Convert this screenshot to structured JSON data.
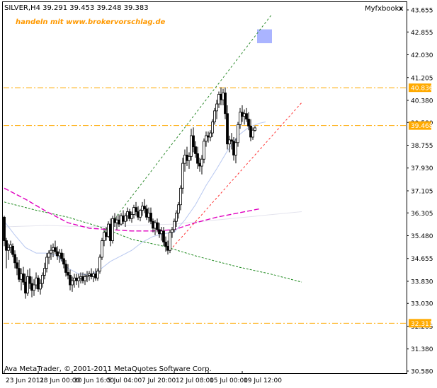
{
  "window": {
    "symbol_header": "SILVER,H4  39.291 39.453 39.248 39.383",
    "indicator_name": "Myfxbook",
    "close_glyph": "x",
    "close_icon": "close-icon"
  },
  "brand_text": "handeln mit www.brokervorschlag.de",
  "copyright": "Ava MetaTrader, © 2001-2011 MetaQuotes Software Corp.",
  "colors": {
    "bull_candle": "#ffffff",
    "bear_candle": "#000000",
    "level_lines": "#ffaa00",
    "level_label_bg": "#ffaa00",
    "upper_channel": "#2e8b2e",
    "lower_channel": "#ff3333",
    "ma_fast": "#b8c8f0",
    "ma_magenta": "#e000c0",
    "ma_green": "#1f8a1f",
    "ma_slow": "#e4e4ee",
    "zone_box": "#aab4ff"
  },
  "chart_data": {
    "type": "candlestick",
    "title": "SILVER,H4",
    "ohlc_header": {
      "open": 39.291,
      "high": 39.453,
      "low": 39.248,
      "close": 39.383
    },
    "y_ticks": [
      "43.655",
      "42.855",
      "42.030",
      "41.205",
      "40.380",
      "39.580",
      "38.755",
      "37.930",
      "37.105",
      "36.305",
      "35.480",
      "34.655",
      "33.830",
      "33.030",
      "32.205",
      "31.380",
      "30.580"
    ],
    "ylim": [
      30.58,
      43.655
    ],
    "x_ticks": [
      "23 Jun 2011",
      "28 Jun 00:00",
      "30 Jun 16:00",
      "5 Jul 04:00",
      "7 Jul 20:00",
      "12 Jul 08:00",
      "15 Jul 00:00",
      "19 Jul 12:00"
    ],
    "x_tick_bars": [
      0,
      16,
      32,
      48,
      64,
      80,
      96,
      112
    ],
    "n_bars": 126,
    "horizontal_levels": [
      {
        "label": "40.836",
        "value": 40.836
      },
      {
        "label": "39.468",
        "value": 39.468
      },
      {
        "label": "32.311",
        "value": 32.311
      }
    ],
    "zone": {
      "from_bar": 119,
      "to_bar": 126,
      "low": 42.45,
      "high": 42.95
    },
    "trend_lines": [
      {
        "name": "upper channel",
        "from": {
          "bar": 47,
          "price": 35.6
        },
        "to": {
          "bar": 126,
          "price": 43.5
        }
      },
      {
        "name": "lower channel",
        "from": {
          "bar": 78,
          "price": 34.95
        },
        "to": {
          "bar": 140,
          "price": 40.3
        }
      }
    ],
    "moving_averages": [
      {
        "name": "slow",
        "points": [
          [
            0,
            35.8
          ],
          [
            20,
            35.85
          ],
          [
            40,
            35.8
          ],
          [
            60,
            35.85
          ],
          [
            80,
            35.9
          ],
          [
            100,
            36.05
          ],
          [
            120,
            36.2
          ],
          [
            140,
            36.35
          ]
        ]
      },
      {
        "name": "green",
        "points": [
          [
            0,
            36.7
          ],
          [
            15,
            36.4
          ],
          [
            30,
            36.15
          ],
          [
            45,
            35.8
          ],
          [
            60,
            35.35
          ],
          [
            75,
            35.1
          ],
          [
            90,
            34.75
          ],
          [
            110,
            34.35
          ],
          [
            125,
            34.1
          ],
          [
            140,
            33.8
          ]
        ]
      },
      {
        "name": "magenta",
        "points": [
          [
            0,
            37.2
          ],
          [
            10,
            36.8
          ],
          [
            20,
            36.35
          ],
          [
            30,
            35.95
          ],
          [
            40,
            35.75
          ],
          [
            50,
            35.7
          ],
          [
            60,
            35.65
          ],
          [
            70,
            35.65
          ],
          [
            80,
            35.7
          ],
          [
            90,
            35.95
          ],
          [
            100,
            36.15
          ],
          [
            110,
            36.3
          ],
          [
            120,
            36.45
          ]
        ]
      },
      {
        "name": "fast",
        "points": [
          [
            0,
            36.0
          ],
          [
            5,
            35.5
          ],
          [
            10,
            35.05
          ],
          [
            15,
            34.85
          ],
          [
            20,
            34.85
          ],
          [
            25,
            34.75
          ],
          [
            30,
            34.3
          ],
          [
            35,
            34.1
          ],
          [
            40,
            34.05
          ],
          [
            45,
            34.25
          ],
          [
            50,
            34.55
          ],
          [
            55,
            34.75
          ],
          [
            60,
            34.95
          ],
          [
            65,
            35.25
          ],
          [
            70,
            35.45
          ],
          [
            75,
            35.55
          ],
          [
            80,
            35.6
          ],
          [
            85,
            36.05
          ],
          [
            90,
            36.6
          ],
          [
            95,
            37.3
          ],
          [
            100,
            37.9
          ],
          [
            105,
            38.55
          ],
          [
            110,
            39.1
          ],
          [
            115,
            39.4
          ],
          [
            120,
            39.55
          ],
          [
            123,
            39.6
          ]
        ]
      }
    ],
    "candles": [
      [
        0,
        36.15,
        36.2,
        35.1,
        35.3
      ],
      [
        1,
        35.3,
        35.4,
        34.3,
        34.95
      ],
      [
        2,
        34.95,
        35.2,
        34.6,
        35.05
      ],
      [
        3,
        35.05,
        35.3,
        34.85,
        35.15
      ],
      [
        4,
        35.1,
        35.2,
        34.7,
        34.8
      ],
      [
        5,
        34.8,
        34.95,
        34.3,
        34.5
      ],
      [
        6,
        34.5,
        34.7,
        34.05,
        34.3
      ],
      [
        7,
        34.3,
        34.6,
        33.8,
        33.9
      ],
      [
        8,
        33.9,
        34.3,
        33.5,
        34.1
      ],
      [
        9,
        34.1,
        34.35,
        33.7,
        33.8
      ],
      [
        10,
        33.8,
        34.1,
        33.2,
        33.4
      ],
      [
        11,
        33.4,
        34.25,
        33.3,
        34.0
      ],
      [
        12,
        34.0,
        34.3,
        33.55,
        33.75
      ],
      [
        13,
        33.75,
        34.0,
        33.25,
        33.5
      ],
      [
        14,
        33.5,
        33.9,
        33.3,
        33.7
      ],
      [
        15,
        33.7,
        34.15,
        33.55,
        33.95
      ],
      [
        16,
        33.95,
        34.05,
        33.45,
        33.55
      ],
      [
        17,
        33.55,
        33.9,
        33.35,
        33.75
      ],
      [
        18,
        33.75,
        34.15,
        33.6,
        34.05
      ],
      [
        19,
        34.05,
        34.5,
        33.9,
        34.3
      ],
      [
        20,
        34.3,
        34.85,
        34.15,
        34.7
      ],
      [
        21,
        34.7,
        34.95,
        34.45,
        34.85
      ],
      [
        22,
        34.85,
        35.15,
        34.6,
        34.95
      ],
      [
        23,
        34.95,
        35.2,
        34.7,
        35.05
      ],
      [
        24,
        35.05,
        35.3,
        34.8,
        34.9
      ],
      [
        25,
        34.9,
        35.1,
        34.6,
        34.75
      ],
      [
        26,
        34.75,
        35.0,
        34.5,
        34.85
      ],
      [
        27,
        34.85,
        35.0,
        34.55,
        34.65
      ],
      [
        28,
        34.65,
        34.85,
        34.3,
        34.45
      ],
      [
        29,
        34.45,
        34.6,
        34.0,
        34.15
      ],
      [
        30,
        34.15,
        34.45,
        33.9,
        34.05
      ],
      [
        31,
        34.05,
        34.25,
        33.5,
        33.7
      ],
      [
        32,
        33.7,
        34.0,
        33.45,
        33.85
      ],
      [
        33,
        33.85,
        34.1,
        33.6,
        33.95
      ],
      [
        34,
        33.95,
        34.1,
        33.7,
        33.85
      ],
      [
        35,
        33.85,
        34.1,
        33.6,
        33.95
      ],
      [
        36,
        33.95,
        34.15,
        33.75,
        34.0
      ],
      [
        37,
        34.0,
        34.15,
        33.75,
        33.85
      ],
      [
        38,
        33.85,
        34.1,
        33.7,
        34.0
      ],
      [
        39,
        34.0,
        34.2,
        33.8,
        34.05
      ],
      [
        40,
        34.05,
        34.2,
        33.85,
        34.1
      ],
      [
        41,
        34.1,
        34.3,
        33.9,
        34.0
      ],
      [
        42,
        34.0,
        34.2,
        33.8,
        34.1
      ],
      [
        43,
        34.1,
        34.3,
        33.85,
        33.95
      ],
      [
        44,
        33.95,
        34.3,
        33.85,
        34.2
      ],
      [
        45,
        34.2,
        34.8,
        34.1,
        34.7
      ],
      [
        46,
        34.7,
        35.4,
        34.6,
        35.3
      ],
      [
        47,
        35.3,
        35.7,
        35.1,
        35.6
      ],
      [
        48,
        35.6,
        35.8,
        35.3,
        35.45
      ],
      [
        49,
        35.45,
        36.0,
        35.4,
        35.9
      ],
      [
        50,
        35.9,
        36.1,
        35.1,
        35.3
      ],
      [
        51,
        35.3,
        36.2,
        35.2,
        36.1
      ],
      [
        52,
        36.1,
        36.3,
        35.8,
        35.95
      ],
      [
        53,
        35.95,
        36.2,
        35.7,
        36.05
      ],
      [
        54,
        36.05,
        36.25,
        35.8,
        35.9
      ],
      [
        55,
        35.9,
        36.3,
        35.85,
        36.2
      ],
      [
        56,
        36.2,
        36.4,
        35.9,
        36.0
      ],
      [
        57,
        36.0,
        36.3,
        35.8,
        36.2
      ],
      [
        58,
        36.2,
        36.5,
        36.0,
        36.35
      ],
      [
        59,
        36.35,
        36.45,
        36.0,
        36.1
      ],
      [
        60,
        36.1,
        36.35,
        35.95,
        36.25
      ],
      [
        61,
        36.25,
        36.6,
        36.1,
        36.5
      ],
      [
        62,
        36.5,
        36.7,
        36.2,
        36.35
      ],
      [
        63,
        36.35,
        36.55,
        36.05,
        36.15
      ],
      [
        64,
        36.15,
        36.45,
        36.0,
        36.4
      ],
      [
        65,
        36.4,
        36.7,
        36.2,
        36.55
      ],
      [
        66,
        36.55,
        36.8,
        36.3,
        36.45
      ],
      [
        67,
        36.45,
        36.6,
        36.05,
        36.15
      ],
      [
        68,
        36.15,
        36.5,
        35.95,
        36.3
      ],
      [
        69,
        36.3,
        36.5,
        35.9,
        36.0
      ],
      [
        70,
        36.0,
        36.1,
        35.6,
        35.75
      ],
      [
        71,
        35.75,
        36.05,
        35.5,
        35.95
      ],
      [
        72,
        35.95,
        36.1,
        35.6,
        35.7
      ],
      [
        73,
        35.7,
        35.95,
        35.4,
        35.55
      ],
      [
        74,
        35.55,
        35.8,
        35.3,
        35.65
      ],
      [
        75,
        35.65,
        35.8,
        35.1,
        35.25
      ],
      [
        76,
        35.25,
        35.45,
        34.9,
        35.1
      ],
      [
        77,
        35.1,
        35.3,
        34.8,
        34.95
      ],
      [
        78,
        34.95,
        35.7,
        34.85,
        35.6
      ],
      [
        79,
        35.6,
        35.8,
        35.4,
        35.7
      ],
      [
        80,
        35.7,
        36.1,
        35.6,
        36.0
      ],
      [
        81,
        36.0,
        36.4,
        35.8,
        36.3
      ],
      [
        82,
        36.3,
        36.7,
        36.1,
        36.6
      ],
      [
        83,
        36.6,
        37.3,
        36.4,
        37.2
      ],
      [
        84,
        37.2,
        38.3,
        37.0,
        38.1
      ],
      [
        85,
        38.1,
        38.6,
        37.8,
        38.4
      ],
      [
        86,
        38.4,
        38.7,
        38.0,
        38.2
      ],
      [
        87,
        38.2,
        38.5,
        37.9,
        38.35
      ],
      [
        88,
        38.35,
        39.35,
        38.2,
        39.1
      ],
      [
        89,
        39.1,
        39.4,
        38.5,
        38.7
      ],
      [
        90,
        38.7,
        38.9,
        38.3,
        38.45
      ],
      [
        91,
        38.45,
        38.7,
        37.9,
        38.1
      ],
      [
        92,
        38.1,
        38.3,
        37.8,
        38.0
      ],
      [
        93,
        38.0,
        38.4,
        37.7,
        38.25
      ],
      [
        94,
        38.25,
        39.0,
        38.1,
        38.9
      ],
      [
        95,
        38.9,
        39.25,
        38.7,
        39.1
      ],
      [
        96,
        39.1,
        39.25,
        38.85,
        39.05
      ],
      [
        97,
        39.05,
        39.3,
        38.9,
        39.2
      ],
      [
        98,
        39.2,
        39.7,
        39.05,
        39.6
      ],
      [
        99,
        39.6,
        40.1,
        39.5,
        40.0
      ],
      [
        100,
        40.0,
        40.4,
        39.7,
        40.25
      ],
      [
        101,
        40.25,
        40.7,
        40.1,
        40.6
      ],
      [
        102,
        40.6,
        40.85,
        40.2,
        40.4
      ],
      [
        103,
        40.4,
        40.8,
        40.2,
        40.65
      ],
      [
        104,
        40.65,
        40.85,
        39.7,
        39.9
      ],
      [
        105,
        39.9,
        40.2,
        38.6,
        38.8
      ],
      [
        106,
        38.8,
        39.1,
        38.5,
        38.95
      ],
      [
        107,
        38.95,
        39.2,
        38.6,
        38.9
      ],
      [
        108,
        38.9,
        39.05,
        38.2,
        38.4
      ],
      [
        109,
        38.4,
        39.0,
        38.1,
        38.85
      ],
      [
        110,
        38.85,
        39.6,
        38.7,
        39.5
      ],
      [
        111,
        39.5,
        40.1,
        39.35,
        39.95
      ],
      [
        112,
        39.95,
        40.2,
        39.6,
        39.8
      ],
      [
        113,
        39.8,
        40.05,
        39.5,
        39.9
      ],
      [
        114,
        39.9,
        40.1,
        39.6,
        39.7
      ],
      [
        115,
        39.7,
        39.95,
        39.3,
        39.45
      ],
      [
        116,
        39.45,
        39.7,
        38.9,
        39.05
      ],
      [
        117,
        39.05,
        39.4,
        38.95,
        39.3
      ],
      [
        118,
        39.291,
        39.453,
        39.248,
        39.383
      ]
    ]
  }
}
